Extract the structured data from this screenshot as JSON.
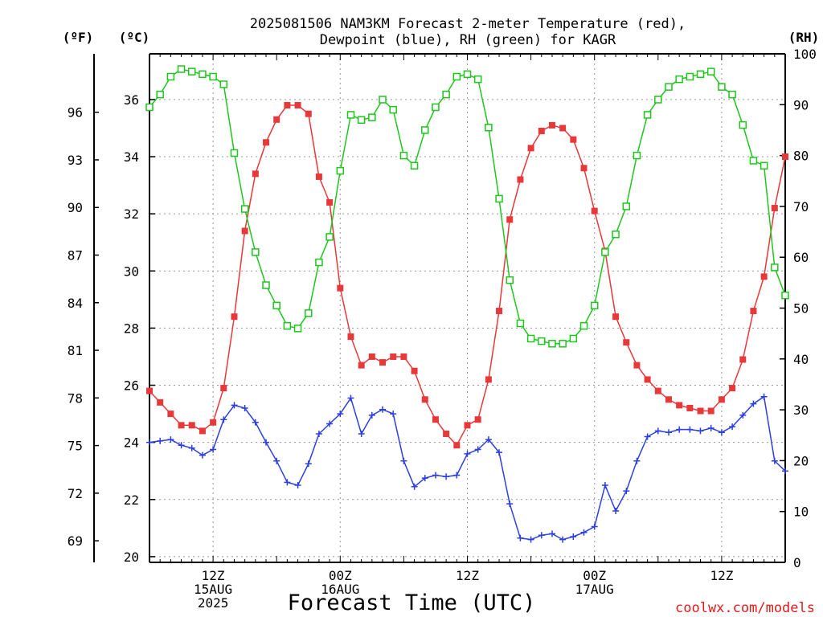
{
  "chart_data": {
    "type": "line",
    "title": {
      "line1": "2025081506 NAM3KM Forecast 2-meter Temperature (red),",
      "line2": "Dewpoint (blue), RH (green) for KAGR"
    },
    "xlabel": "Forecast Time (UTC)",
    "credit": "coolwx.com/models",
    "units": {
      "left_f": "(ºF)",
      "left_c": "(ºC)",
      "right_rh": "(RH)"
    },
    "x_time_labels": [
      {
        "hour": 6,
        "lines": [
          "12Z",
          "15AUG",
          "2025"
        ]
      },
      {
        "hour": 18,
        "lines": [
          "00Z",
          "16AUG"
        ]
      },
      {
        "hour": 30,
        "lines": [
          "12Z"
        ]
      },
      {
        "hour": 42,
        "lines": [
          "00Z",
          "17AUG"
        ]
      },
      {
        "hour": 54,
        "lines": [
          "12Z"
        ]
      }
    ],
    "x_range_hours": [
      0,
      60
    ],
    "y_celsius": {
      "ylim": [
        19.8,
        37.6
      ],
      "ticks": [
        "20",
        "22",
        "24",
        "26",
        "28",
        "30",
        "32",
        "34",
        "36"
      ]
    },
    "y_fahrenheit": {
      "ticks": [
        "69",
        "72",
        "75",
        "78",
        "81",
        "84",
        "87",
        "90",
        "93",
        "96"
      ]
    },
    "y_rh": {
      "ylim": [
        0,
        100
      ],
      "ticks": [
        "0",
        "10",
        "20",
        "30",
        "40",
        "50",
        "60",
        "70",
        "80",
        "90",
        "100"
      ]
    },
    "grid": true,
    "series": [
      {
        "name": "Temperature",
        "unit": "C",
        "color": "#e8383a",
        "marker": "filled-square",
        "values": [
          25.8,
          25.4,
          25.0,
          24.6,
          24.6,
          24.4,
          24.7,
          25.9,
          28.4,
          31.4,
          33.4,
          34.5,
          35.3,
          35.8,
          35.8,
          35.5,
          33.3,
          32.4,
          29.4,
          27.7,
          26.7,
          27.0,
          26.8,
          27.0,
          27.0,
          26.5,
          25.5,
          24.8,
          24.3,
          23.9,
          24.6,
          24.8,
          26.2,
          28.6,
          31.8,
          33.2,
          34.3,
          34.9,
          35.1,
          35.0,
          34.6,
          33.6,
          32.1,
          30.7,
          28.4,
          27.5,
          26.7,
          26.2,
          25.8,
          25.5,
          25.3,
          25.2,
          25.1,
          25.1,
          25.5,
          25.9,
          26.9,
          28.6,
          29.8,
          32.2,
          34.0
        ]
      },
      {
        "name": "Dewpoint",
        "unit": "C",
        "color": "#2c3fe0",
        "marker": "plus",
        "values": [
          24.0,
          24.05,
          24.1,
          23.9,
          23.8,
          23.55,
          23.75,
          24.8,
          25.3,
          25.2,
          24.7,
          24.0,
          23.35,
          22.6,
          22.5,
          23.25,
          24.3,
          24.65,
          25.0,
          25.55,
          24.3,
          24.95,
          25.15,
          25.0,
          23.35,
          22.45,
          22.75,
          22.85,
          22.8,
          22.85,
          23.6,
          23.75,
          24.1,
          23.65,
          21.85,
          20.65,
          20.6,
          20.75,
          20.8,
          20.6,
          20.7,
          20.85,
          21.05,
          22.5,
          21.6,
          22.3,
          23.35,
          24.2,
          24.4,
          24.35,
          24.45,
          24.45,
          24.4,
          24.5,
          24.35,
          24.55,
          24.95,
          25.35,
          25.6,
          23.35,
          23.0
        ]
      },
      {
        "name": "RH",
        "unit": "%",
        "color": "#1fc61f",
        "marker": "open-square",
        "values": [
          89.5,
          92.0,
          95.5,
          97.0,
          96.5,
          96.0,
          95.5,
          94.0,
          80.5,
          69.5,
          61.0,
          54.5,
          50.5,
          46.5,
          46.0,
          49.0,
          59.0,
          64.0,
          77.0,
          88.0,
          87.0,
          87.5,
          91.0,
          89.0,
          80.0,
          78.0,
          85.0,
          89.5,
          92.0,
          95.5,
          96.0,
          95.0,
          85.5,
          71.5,
          55.5,
          47.0,
          44.0,
          43.5,
          43.0,
          43.0,
          44.0,
          46.5,
          50.5,
          61.0,
          64.5,
          70.0,
          80.0,
          88.0,
          91.0,
          93.5,
          95.0,
          95.5,
          96.0,
          96.5,
          93.5,
          92.0,
          86.0,
          79.0,
          78.0,
          58.0,
          52.5
        ]
      }
    ]
  }
}
